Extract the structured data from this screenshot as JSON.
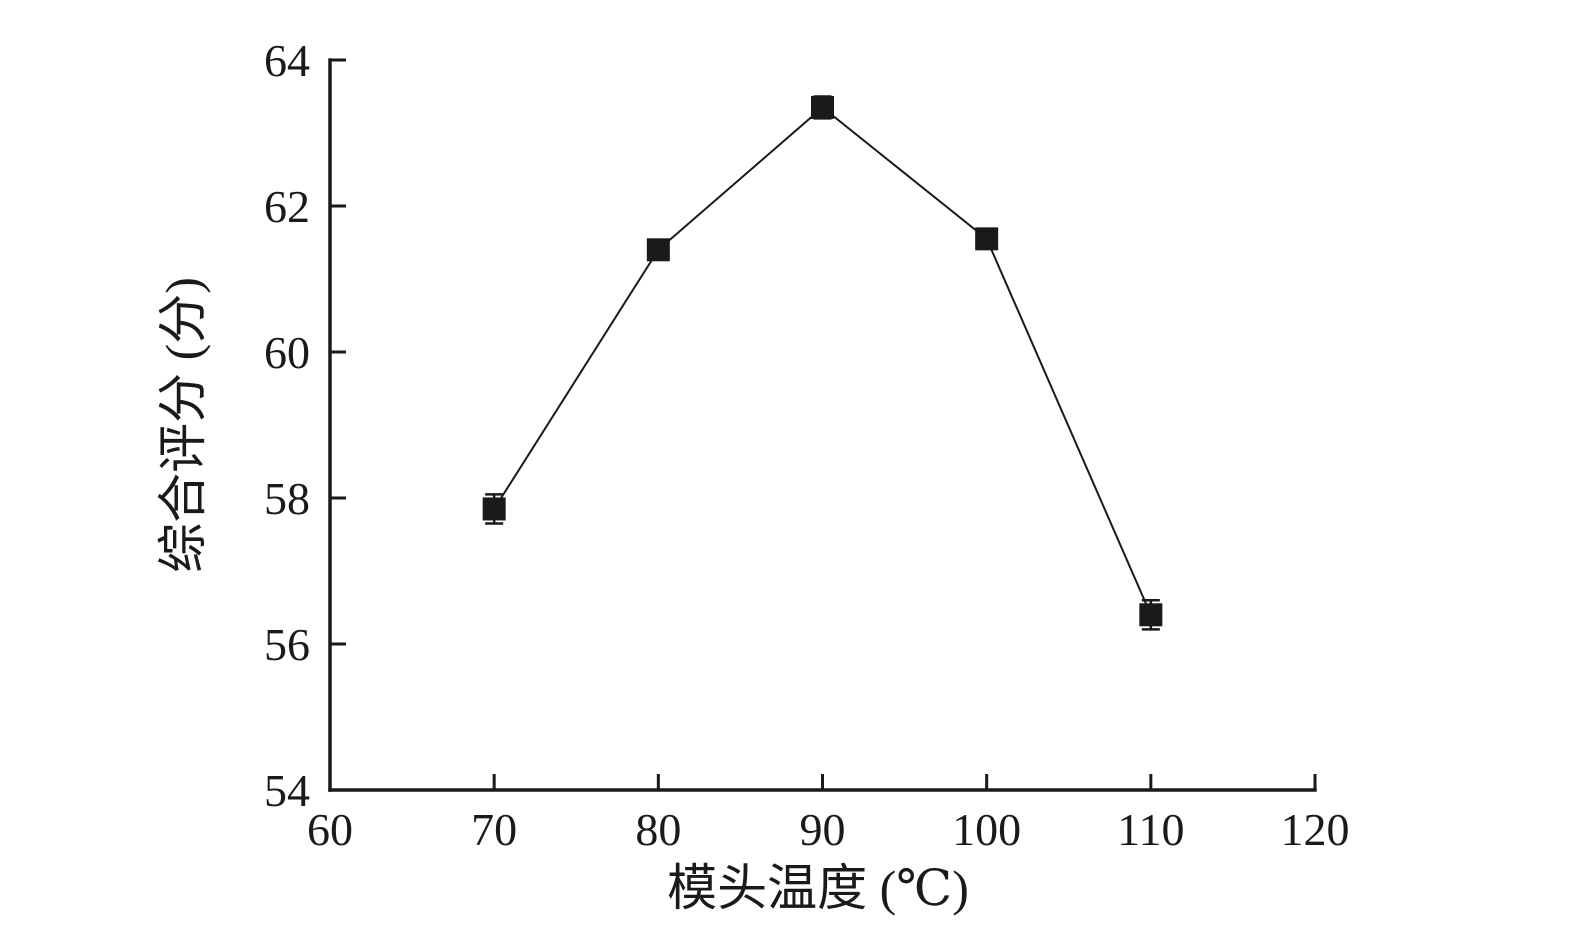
{
  "chart_data": {
    "type": "line",
    "title": "",
    "xlabel": "模头温度 (℃)",
    "ylabel": "综合评分 (分)",
    "x": [
      70,
      80,
      90,
      100,
      110
    ],
    "series": [
      {
        "name": "综合评分",
        "values": [
          57.85,
          61.4,
          63.35,
          61.55,
          56.4
        ],
        "yerr": [
          0.2,
          0.12,
          0.15,
          0.1,
          0.2
        ]
      }
    ],
    "xlim": [
      60,
      120
    ],
    "ylim": [
      54,
      64
    ],
    "xticks": [
      60,
      70,
      80,
      90,
      100,
      110,
      120
    ],
    "yticks": [
      54,
      56,
      58,
      60,
      62,
      64
    ],
    "marker": "square",
    "line_color": "#1a1a1a",
    "marker_color": "#1a1a1a",
    "background_color": "#ffffff",
    "grid": false,
    "legend_position": "none"
  }
}
